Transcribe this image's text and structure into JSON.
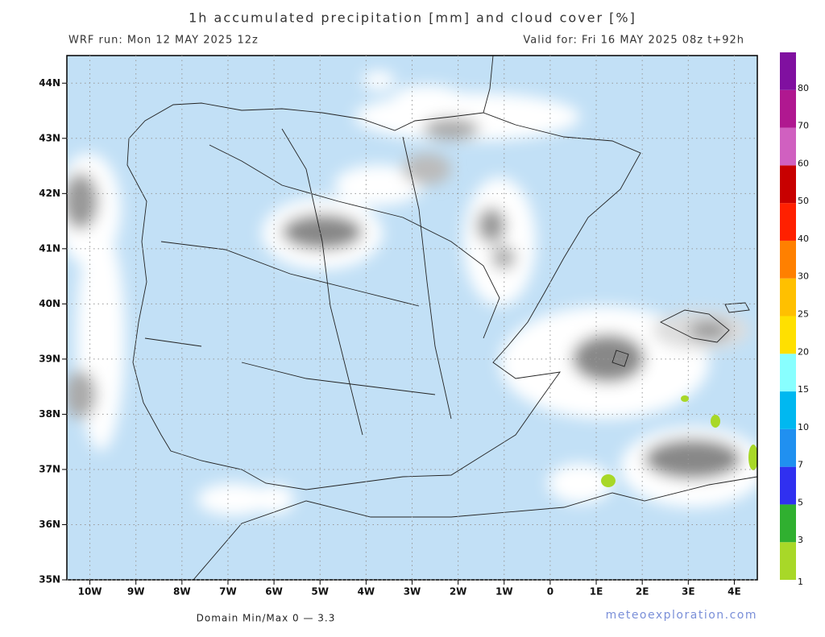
{
  "header": {
    "title": "1h accumulated precipitation [mm] and cloud cover [%]",
    "run": "WRF run: Mon 12 MAY 2025 12z",
    "valid": "Valid for: Fri 16 MAY 2025 08z  t+92h"
  },
  "map": {
    "lon_range": [
      -10.5,
      4.5
    ],
    "lat_range": [
      35,
      44.5
    ],
    "lat_ticks": [
      {
        "value": 35,
        "label": "35N"
      },
      {
        "value": 36,
        "label": "36N"
      },
      {
        "value": 37,
        "label": "37N"
      },
      {
        "value": 38,
        "label": "38N"
      },
      {
        "value": 39,
        "label": "39N"
      },
      {
        "value": 40,
        "label": "40N"
      },
      {
        "value": 41,
        "label": "41N"
      },
      {
        "value": 42,
        "label": "42N"
      },
      {
        "value": 43,
        "label": "43N"
      },
      {
        "value": 44,
        "label": "44N"
      }
    ],
    "lon_ticks": [
      {
        "value": -10,
        "label": "10W"
      },
      {
        "value": -9,
        "label": "9W"
      },
      {
        "value": -8,
        "label": "8W"
      },
      {
        "value": -7,
        "label": "7W"
      },
      {
        "value": -6,
        "label": "6W"
      },
      {
        "value": -5,
        "label": "5W"
      },
      {
        "value": -4,
        "label": "4W"
      },
      {
        "value": -3,
        "label": "3W"
      },
      {
        "value": -2,
        "label": "2W"
      },
      {
        "value": -1,
        "label": "1W"
      },
      0,
      {
        "value": 1,
        "label": "1E"
      },
      {
        "value": 2,
        "label": "2E"
      },
      {
        "value": 3,
        "label": "3E"
      },
      {
        "value": 4,
        "label": "4E"
      }
    ]
  },
  "colorbar": {
    "levels": [
      1,
      3,
      5,
      7,
      10,
      15,
      20,
      25,
      30,
      40,
      50,
      60,
      70,
      80
    ],
    "colors": [
      "#a8d828",
      "#30b030",
      "#3030f0",
      "#2090f0",
      "#00b8f0",
      "#88ffff",
      "#ffe000",
      "#ffc000",
      "#ff8000",
      "#ff2000",
      "#c80000",
      "#d060c0",
      "#b01890",
      "#8010a0"
    ]
  },
  "footer": {
    "minmax": "Domain Min/Max 0 — 3.3",
    "brand": "meteoexploration.com"
  }
}
